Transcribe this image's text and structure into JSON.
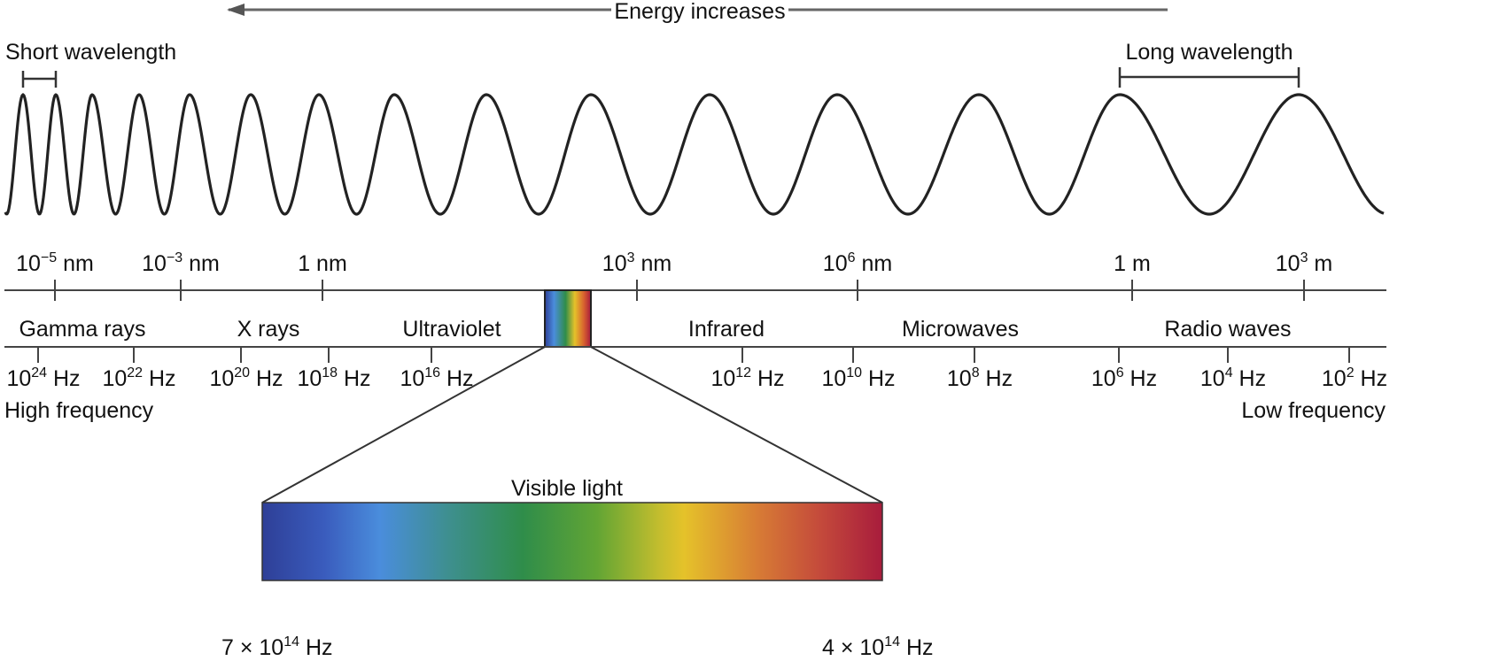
{
  "energy": {
    "label": "Energy increases"
  },
  "short_wavelength": {
    "label": "Short wavelength"
  },
  "long_wavelength": {
    "label": "Long wavelength"
  },
  "wavelength_ticks": [
    {
      "base": "10",
      "exp": "−5",
      "unit": " nm"
    },
    {
      "base": "10",
      "exp": "−3",
      "unit": " nm"
    },
    {
      "base": "1 nm",
      "exp": "",
      "unit": ""
    },
    {
      "base": "10",
      "exp": "3",
      "unit": " nm"
    },
    {
      "base": "10",
      "exp": "6",
      "unit": "  nm"
    },
    {
      "base": "1 m",
      "exp": "",
      "unit": ""
    },
    {
      "base": "10",
      "exp": "3",
      "unit": " m"
    }
  ],
  "bands": [
    {
      "label": "Gamma rays"
    },
    {
      "label": "X rays"
    },
    {
      "label": "Ultraviolet"
    },
    {
      "label": "Infrared"
    },
    {
      "label": "Microwaves"
    },
    {
      "label": "Radio waves"
    }
  ],
  "frequency_ticks": [
    {
      "base": "10",
      "exp": "24",
      "unit": " Hz"
    },
    {
      "base": "10",
      "exp": "22",
      "unit": " Hz"
    },
    {
      "base": "10",
      "exp": "20",
      "unit": " Hz"
    },
    {
      "base": "10",
      "exp": "18",
      "unit": " Hz"
    },
    {
      "base": "10",
      "exp": "16",
      "unit": " Hz"
    },
    {
      "base": "10",
      "exp": "12",
      "unit": " Hz"
    },
    {
      "base": "10",
      "exp": "10",
      "unit": " Hz"
    },
    {
      "base": "10",
      "exp": "8",
      "unit": " Hz"
    },
    {
      "base": "10",
      "exp": "6",
      "unit": " Hz"
    },
    {
      "base": "10",
      "exp": "4",
      "unit": " Hz"
    },
    {
      "base": "10",
      "exp": "2",
      "unit": " Hz"
    }
  ],
  "high_frequency": {
    "label": "High frequency"
  },
  "low_frequency": {
    "label": "Low frequency"
  },
  "visible": {
    "label": "Visible light",
    "left": {
      "base": "7 × 10",
      "exp": "14",
      "unit": " Hz"
    },
    "right": {
      "base": "4 × 10",
      "exp": "14",
      "unit": " Hz"
    }
  },
  "colors": {
    "line": "#333333",
    "wave": "#222222",
    "arrow": "#777777"
  }
}
